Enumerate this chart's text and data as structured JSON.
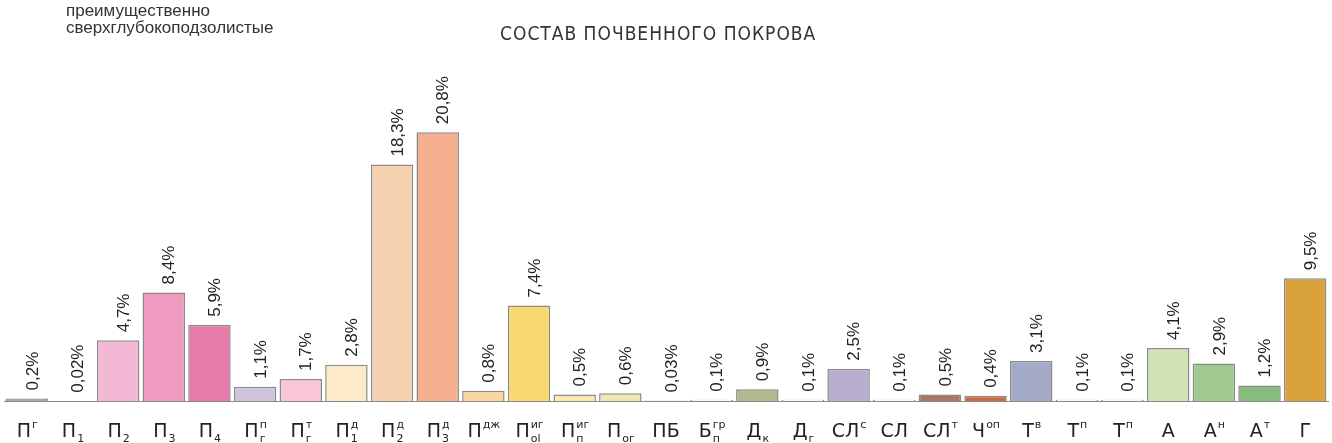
{
  "chart_data": {
    "type": "bar",
    "title": "СОСТАВ ПОЧВЕННОГО ПОКРОВА",
    "annotations": [
      "преимущественно сверхглубокоподзолистые"
    ],
    "categories": [
      "П$^{г}$",
      "П$_{1}$",
      "П$_{2}$",
      "П$_{3}$",
      "П$_{4}$",
      "П$^{п}$$_{г}$",
      "П$^{т}$$_{г}$",
      "П$^{д}$$_{1}$",
      "П$^{д}$$_{2}$",
      "П$^{д}$$_{3}$",
      "П$^{дж}$",
      "П$^{иг}$$_{ol}$",
      "П$^{иг}$$_{п}$",
      "П$_{ог}$",
      "ПБ",
      "Б$^{гр}$$_{п}$",
      "Д$_{к}$",
      "Д$_{г}$",
      "СЛ$^{с}$",
      "СЛ",
      "СЛ$^{т}$",
      "Ч$^{оп}$",
      "Т$^{в}$",
      "Т$^{п}$",
      "Т$^{п}$",
      "А",
      "А$^{н}$",
      "А$^{т}$",
      "Г"
    ],
    "values": [
      0.2,
      0.02,
      4.7,
      8.4,
      5.9,
      1.1,
      1.7,
      2.8,
      18.3,
      20.8,
      0.8,
      7.4,
      0.5,
      0.6,
      0.03,
      0.1,
      0.9,
      0.1,
      2.5,
      0.1,
      0.5,
      0.4,
      3.1,
      0.1,
      0.1,
      4.1,
      2.9,
      1.2,
      9.5
    ],
    "colors": [
      "#a8a8b8",
      "#ffffff",
      "#f2b8d4",
      "#ef9abf",
      "#e87aaa",
      "#cfc3dd",
      "#f9c6d8",
      "#fdeac8",
      "#f5d0b0",
      "#f5b08f",
      "#fad7a0",
      "#f9d872",
      "#fbe9b0",
      "#f3e6b5",
      "#ffffff",
      "#ffffff",
      "#b3b98d",
      "#ffffff",
      "#b9aed0",
      "#ffffff",
      "#a87766",
      "#d06a3e",
      "#a3a9c6",
      "#ffffff",
      "#ffffff",
      "#cfe4b2",
      "#9fc98e",
      "#86bd7e",
      "#d9a23a"
    ],
    "value_labels": [
      "0,2%",
      "0,02%",
      "4,7%",
      "8,4%",
      "5,9%",
      "1,1%",
      "1,7%",
      "2,8%",
      "18,3%",
      "20,8%",
      "0,8%",
      "7,4%",
      "0,5%",
      "0,6%",
      "0,03%",
      "0,1%",
      "0,9%",
      "0,1%",
      "2,5%",
      "0,1%",
      "0,5%",
      "0,4%",
      "3,1%",
      "0,1%",
      "0,1%",
      "4,1%",
      "2,9%",
      "1,2%",
      "9,5%"
    ]
  }
}
